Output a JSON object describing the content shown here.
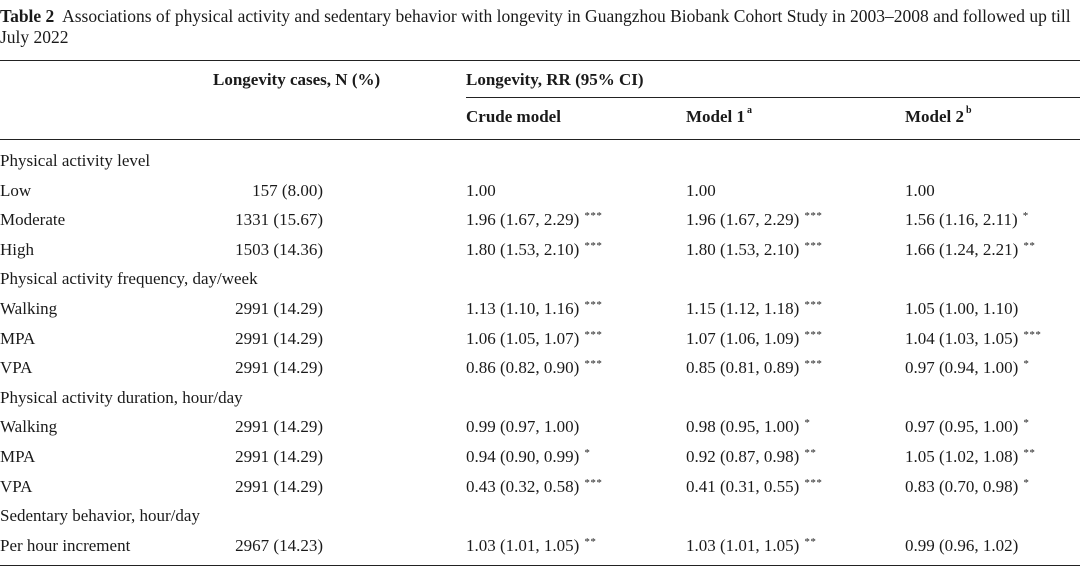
{
  "caption": {
    "label": "Table 2",
    "text": "Associations of physical activity and sedentary behavior with longevity in Guangzhou Biobank Cohort Study in 2003–2008 and followed up till July 2022"
  },
  "headers": {
    "cases": "Longevity cases, N (%)",
    "rr": "Longevity, RR (95% CI)",
    "crude": "Crude model",
    "model1": "Model 1",
    "model1_sup": "a",
    "model2": "Model 2",
    "model2_sup": "b"
  },
  "rows": [
    {
      "label": "Physical activity level",
      "n": "",
      "crude": "",
      "crude_sig": "",
      "m1": "",
      "m1_sig": "",
      "m2": "",
      "m2_sig": ""
    },
    {
      "label": "Low",
      "n": "157 (8.00)",
      "crude": "1.00",
      "crude_sig": "",
      "m1": "1.00",
      "m1_sig": "",
      "m2": "1.00",
      "m2_sig": ""
    },
    {
      "label": "Moderate",
      "n": "1331 (15.67)",
      "crude": "1.96 (1.67, 2.29)",
      "crude_sig": "***",
      "m1": "1.96 (1.67, 2.29)",
      "m1_sig": "***",
      "m2": "1.56 (1.16, 2.11)",
      "m2_sig": "*"
    },
    {
      "label": "High",
      "n": "1503 (14.36)",
      "crude": "1.80 (1.53, 2.10)",
      "crude_sig": "***",
      "m1": "1.80 (1.53, 2.10)",
      "m1_sig": "***",
      "m2": "1.66 (1.24, 2.21)",
      "m2_sig": "**"
    },
    {
      "label": "Physical activity frequency, day/week",
      "n": "",
      "crude": "",
      "crude_sig": "",
      "m1": "",
      "m1_sig": "",
      "m2": "",
      "m2_sig": ""
    },
    {
      "label": "Walking",
      "n": "2991 (14.29)",
      "crude": "1.13 (1.10, 1.16)",
      "crude_sig": "***",
      "m1": "1.15 (1.12, 1.18)",
      "m1_sig": "***",
      "m2": "1.05 (1.00, 1.10)",
      "m2_sig": ""
    },
    {
      "label": "MPA",
      "n": "2991 (14.29)",
      "crude": "1.06 (1.05, 1.07)",
      "crude_sig": "***",
      "m1": "1.07 (1.06, 1.09)",
      "m1_sig": "***",
      "m2": "1.04 (1.03, 1.05)",
      "m2_sig": "***"
    },
    {
      "label": "VPA",
      "n": "2991 (14.29)",
      "crude": "0.86 (0.82, 0.90)",
      "crude_sig": "***",
      "m1": "0.85 (0.81, 0.89)",
      "m1_sig": "***",
      "m2": "0.97 (0.94, 1.00)",
      "m2_sig": "*"
    },
    {
      "label": "Physical activity duration, hour/day",
      "n": "",
      "crude": "",
      "crude_sig": "",
      "m1": "",
      "m1_sig": "",
      "m2": "",
      "m2_sig": ""
    },
    {
      "label": "Walking",
      "n": "2991 (14.29)",
      "crude": "0.99 (0.97, 1.00)",
      "crude_sig": "",
      "m1": "0.98 (0.95, 1.00)",
      "m1_sig": "*",
      "m2": "0.97 (0.95, 1.00)",
      "m2_sig": "*"
    },
    {
      "label": "MPA",
      "n": "2991 (14.29)",
      "crude": "0.94 (0.90, 0.99)",
      "crude_sig": "*",
      "m1": "0.92 (0.87, 0.98)",
      "m1_sig": "**",
      "m2": "1.05 (1.02, 1.08)",
      "m2_sig": "**"
    },
    {
      "label": "VPA",
      "n": "2991 (14.29)",
      "crude": "0.43 (0.32, 0.58)",
      "crude_sig": "***",
      "m1": "0.41 (0.31, 0.55)",
      "m1_sig": "***",
      "m2": "0.83 (0.70, 0.98)",
      "m2_sig": "*"
    },
    {
      "label": "Sedentary behavior, hour/day",
      "n": "",
      "crude": "",
      "crude_sig": "",
      "m1": "",
      "m1_sig": "",
      "m2": "",
      "m2_sig": ""
    },
    {
      "label": "Per hour increment",
      "n": "2967 (14.23)",
      "crude": "1.03 (1.01, 1.05)",
      "crude_sig": "**",
      "m1": "1.03 (1.01, 1.05)",
      "m1_sig": "**",
      "m2": "0.99 (0.96, 1.02)",
      "m2_sig": ""
    }
  ]
}
